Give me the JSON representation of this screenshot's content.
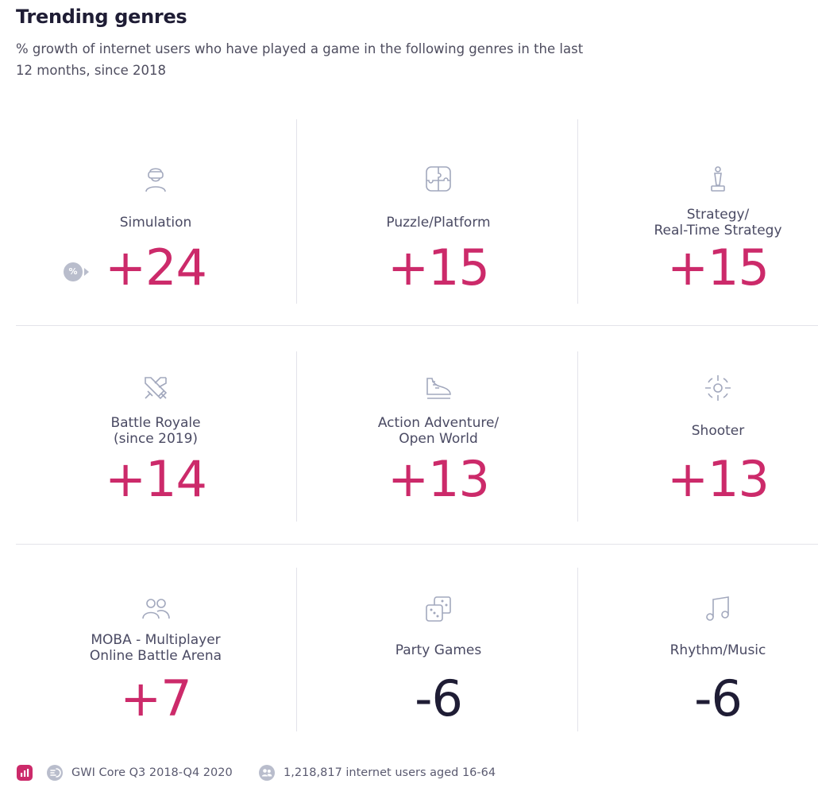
{
  "title": "Trending genres",
  "subtitle": "% growth of internet users who have played a game in the following genres in the last 12 months, since 2018",
  "colors": {
    "positive": "#cc2a6a",
    "negative": "#1f1d35",
    "icon": "#a2a8bd",
    "divider": "#e3e3ea"
  },
  "percent_badge": {
    "label": "%",
    "icon": "percent-icon"
  },
  "chart_data": {
    "type": "table",
    "unit": "%",
    "title": "Trending genres",
    "subtitle": "% growth of internet users who have played a game in the following genres in the last 12 months, since 2018",
    "cells": [
      {
        "label": "Simulation",
        "value": 24,
        "display": "+24",
        "icon": "vr-headset-icon"
      },
      {
        "label": "Puzzle/Platform",
        "value": 15,
        "display": "+15",
        "icon": "puzzle-icon"
      },
      {
        "label": "Strategy/\nReal-Time Strategy",
        "value": 15,
        "display": "+15",
        "icon": "chess-piece-icon"
      },
      {
        "label": "Battle Royale\n(since 2019)",
        "value": 14,
        "display": "+14",
        "icon": "crossed-swords-icon"
      },
      {
        "label": "Action Adventure/\nOpen World",
        "value": 13,
        "display": "+13",
        "icon": "sneaker-icon"
      },
      {
        "label": "Shooter",
        "value": 13,
        "display": "+13",
        "icon": "crosshair-icon"
      },
      {
        "label": "MOBA - Multiplayer\nOnline Battle Arena",
        "value": 7,
        "display": "+7",
        "icon": "users-icon"
      },
      {
        "label": "Party Games",
        "value": -6,
        "display": "-6",
        "icon": "dice-icon"
      },
      {
        "label": "Rhythm/Music",
        "value": -6,
        "display": "-6",
        "icon": "music-note-icon"
      }
    ]
  },
  "footer": {
    "source": "GWI Core Q3 2018-Q4 2020",
    "sample": "1,218,817 internet users aged 16-64",
    "icons": [
      "chart-badge-icon",
      "database-icon",
      "audience-icon"
    ]
  }
}
